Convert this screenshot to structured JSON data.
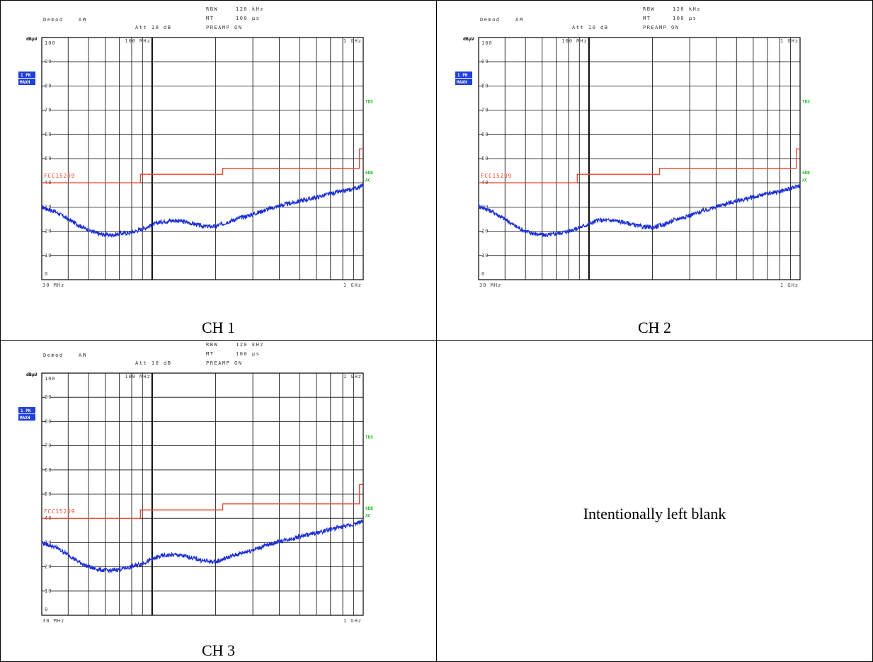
{
  "colors": {
    "limit": "#e8442e",
    "trace": "#1c2fd6",
    "badge": "#1f3fd8",
    "green": "#22bb22"
  },
  "captions": {
    "ch1": "CH 1",
    "ch2": "CH 2",
    "ch3": "CH 3",
    "blank": "Intentionally left blank"
  },
  "header": {
    "demod": "Demod",
    "am": "AM",
    "att": "Att 10 dB",
    "rbw": "RBW",
    "rbw_val": "120 kHz",
    "mt": "MT",
    "mt_val": "100 µs",
    "preamp": "PREAMP ON"
  },
  "unit_label": "dBµV",
  "badge": {
    "line1": "1 PK",
    "line2": "MAXH"
  },
  "side_labels": {
    "tds": "TDS",
    "sdb": "6DB",
    "ac": "AC"
  },
  "limit_label": "FCC15209",
  "x_ticks": {
    "start": "30 MHz",
    "stop": "1 GHz",
    "marker": "100 MHz",
    "top_right": "1 GHz"
  },
  "chart_data": [
    {
      "type": "line",
      "channel": "CH 1",
      "xscale": "log",
      "xlim_mhz": [
        30,
        1000
      ],
      "ylim": [
        0,
        100
      ],
      "yticks": [
        0,
        10,
        20,
        30,
        40,
        50,
        60,
        70,
        80,
        90,
        100
      ],
      "marker_line_mhz": 100,
      "series": [
        {
          "name": "FCC15209",
          "kind": "limit-step",
          "x": [
            30,
            88,
            88,
            216,
            216,
            960,
            960,
            1000
          ],
          "y": [
            40,
            40,
            43.5,
            43.5,
            46,
            46,
            54,
            54
          ]
        },
        {
          "kind": "trace",
          "x": [
            30,
            35,
            40,
            45,
            50,
            55,
            60,
            65,
            70,
            80,
            90,
            100,
            110,
            130,
            150,
            175,
            200,
            230,
            260,
            300,
            350,
            400,
            450,
            500,
            600,
            700,
            800,
            900,
            1000
          ],
          "y": [
            30,
            28,
            25,
            22.5,
            20.5,
            19,
            18.5,
            18.5,
            19,
            19.5,
            21,
            22.5,
            24,
            24.5,
            23.5,
            22,
            22,
            24,
            25.5,
            27,
            29,
            30.5,
            31.5,
            32.5,
            34,
            35.5,
            36.5,
            37.5,
            39
          ]
        }
      ]
    },
    {
      "type": "line",
      "channel": "CH 2",
      "xscale": "log",
      "xlim_mhz": [
        30,
        1000
      ],
      "ylim": [
        0,
        100
      ],
      "yticks": [
        0,
        10,
        20,
        30,
        40,
        50,
        60,
        70,
        80,
        90,
        100
      ],
      "marker_line_mhz": 100,
      "series": [
        {
          "name": "FCC15209",
          "kind": "limit-step",
          "x": [
            30,
            88,
            88,
            216,
            216,
            960,
            960,
            1000
          ],
          "y": [
            40,
            40,
            43.5,
            43.5,
            46,
            46,
            54,
            54
          ]
        },
        {
          "kind": "trace",
          "x": [
            30,
            35,
            40,
            45,
            50,
            55,
            60,
            65,
            70,
            80,
            90,
            100,
            110,
            130,
            150,
            175,
            200,
            230,
            260,
            300,
            350,
            400,
            450,
            500,
            600,
            700,
            800,
            900,
            1000
          ],
          "y": [
            30.5,
            28,
            25,
            22,
            20,
            19,
            18.5,
            18.5,
            19,
            20,
            21.5,
            23,
            24.5,
            24.5,
            23.5,
            22,
            21.5,
            23,
            25,
            26.5,
            28.5,
            30,
            31.5,
            32.5,
            34,
            35.5,
            36.5,
            37.5,
            39
          ]
        }
      ]
    },
    {
      "type": "line",
      "channel": "CH 3",
      "xscale": "log",
      "xlim_mhz": [
        30,
        1000
      ],
      "ylim": [
        0,
        100
      ],
      "yticks": [
        0,
        10,
        20,
        30,
        40,
        50,
        60,
        70,
        80,
        90,
        100
      ],
      "marker_line_mhz": 100,
      "series": [
        {
          "name": "FCC15209",
          "kind": "limit-step",
          "x": [
            30,
            88,
            88,
            216,
            216,
            960,
            960,
            1000
          ],
          "y": [
            40,
            40,
            43.5,
            43.5,
            46,
            46,
            54,
            54
          ]
        },
        {
          "kind": "trace",
          "x": [
            30,
            35,
            40,
            45,
            50,
            55,
            60,
            65,
            70,
            80,
            90,
            100,
            110,
            130,
            150,
            175,
            200,
            230,
            260,
            300,
            350,
            400,
            450,
            500,
            600,
            700,
            800,
            900,
            1000
          ],
          "y": [
            30,
            28,
            25,
            22,
            20,
            19,
            18.5,
            18.5,
            19,
            20,
            21.5,
            23,
            24.5,
            25,
            24,
            22.5,
            22,
            24,
            25.5,
            27,
            29,
            30.5,
            31.5,
            32.5,
            34,
            35.5,
            36.5,
            37.5,
            39
          ]
        }
      ]
    }
  ]
}
